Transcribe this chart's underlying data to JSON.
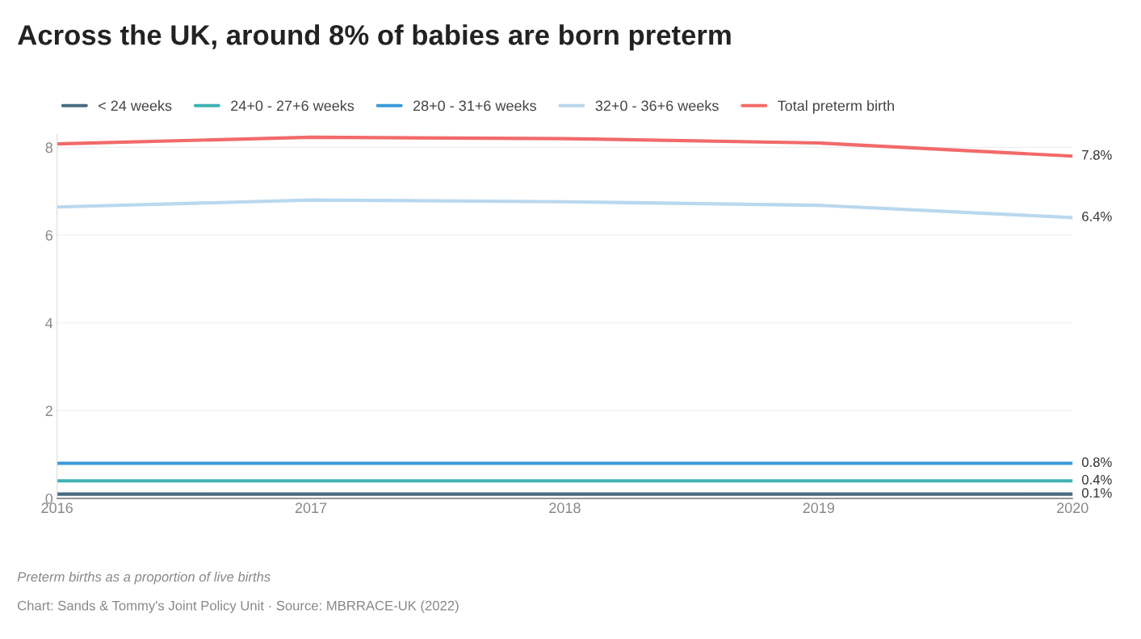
{
  "chart_data": {
    "type": "line",
    "title": "Across the UK, around 8% of babies are born preterm",
    "x": [
      2016,
      2017,
      2018,
      2019,
      2020
    ],
    "series": [
      {
        "name": "< 24 weeks",
        "color": "#4a6b82",
        "values": [
          0.1,
          0.1,
          0.1,
          0.1,
          0.1
        ],
        "value_labels": [
          null,
          null,
          null,
          null,
          "0.1%"
        ]
      },
      {
        "name": "24+0 - 27+6 weeks",
        "color": "#3fb3b3",
        "values": [
          0.4,
          0.4,
          0.4,
          0.4,
          0.4
        ],
        "value_labels": [
          null,
          null,
          null,
          null,
          "0.4%"
        ]
      },
      {
        "name": "28+0 - 31+6 weeks",
        "color": "#3a9ad9",
        "values": [
          0.8,
          0.8,
          0.8,
          0.8,
          0.8
        ],
        "value_labels": [
          null,
          null,
          null,
          null,
          "0.8%"
        ]
      },
      {
        "name": "32+0 - 36+6 weeks",
        "color": "#b9d8ef",
        "values": [
          6.64,
          6.8,
          6.76,
          6.68,
          6.4
        ],
        "value_labels": [
          null,
          null,
          null,
          null,
          "6.4%"
        ]
      },
      {
        "name": "Total preterm birth",
        "color": "#f26a6a",
        "values": [
          8.08,
          8.23,
          8.2,
          8.1,
          7.8
        ],
        "value_labels": [
          null,
          null,
          null,
          null,
          "7.8%"
        ]
      }
    ],
    "xlim": [
      2016,
      2020
    ],
    "xticks": [
      2016,
      2017,
      2018,
      2019,
      2020
    ],
    "ylim": [
      0,
      8.3
    ],
    "yticks": [
      0,
      2,
      4,
      6,
      8
    ],
    "grid": "y",
    "legend": "top",
    "marker": "none",
    "line_style": "solid",
    "annotations": [
      "Preterm births as a proportion of live births",
      "Chart: Sands & Tommy's Joint Policy Unit · Source: MBRRACE-UK (2022)"
    ]
  }
}
